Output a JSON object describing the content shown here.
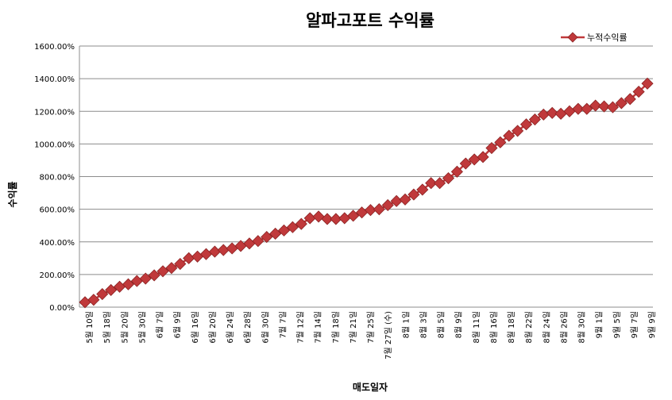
{
  "chart_data": {
    "type": "line",
    "title": "알파고포트 수익률",
    "xlabel": "매도일자",
    "ylabel": "수익률",
    "ylim": [
      0,
      1600
    ],
    "y_ticks": [
      "0.00%",
      "200.00%",
      "400.00%",
      "600.00%",
      "800.00%",
      "1000.00%",
      "1200.00%",
      "1400.00%",
      "1600.00%"
    ],
    "grid": true,
    "legend": "top-right",
    "x_tick_labels": [
      "5월 10일",
      "5월 18일",
      "5월 20일",
      "5월 30일",
      "6월 7일",
      "6월 9일",
      "6월 16일",
      "6월 20일",
      "6월 24일",
      "6월 28일",
      "6월 30일",
      "7월 7일",
      "7월 12일",
      "7월 14일",
      "7월 18일",
      "7월 21일",
      "7월 25일",
      "7월 27일 (수)",
      "8월 1일",
      "8월 3일",
      "8월 5일",
      "8월 9일",
      "8월 11일",
      "8월 16일",
      "8월 18일",
      "8월 22일",
      "8월 24일",
      "8월 26일",
      "8월 30일",
      "9월 1일",
      "9월 5일",
      "9월 7일",
      "9월 9일"
    ],
    "series": [
      {
        "name": "누적수익률",
        "color": "#c0393b",
        "values": [
          30,
          45,
          80,
          105,
          125,
          140,
          160,
          175,
          195,
          220,
          240,
          265,
          300,
          310,
          325,
          340,
          350,
          360,
          375,
          390,
          405,
          430,
          450,
          470,
          490,
          510,
          545,
          555,
          540,
          540,
          545,
          560,
          580,
          595,
          600,
          625,
          650,
          660,
          690,
          720,
          760,
          760,
          790,
          830,
          880,
          905,
          920,
          975,
          1010,
          1050,
          1080,
          1120,
          1150,
          1180,
          1190,
          1185,
          1200,
          1215,
          1215,
          1235,
          1230,
          1225,
          1250,
          1275,
          1320,
          1370
        ]
      }
    ]
  }
}
